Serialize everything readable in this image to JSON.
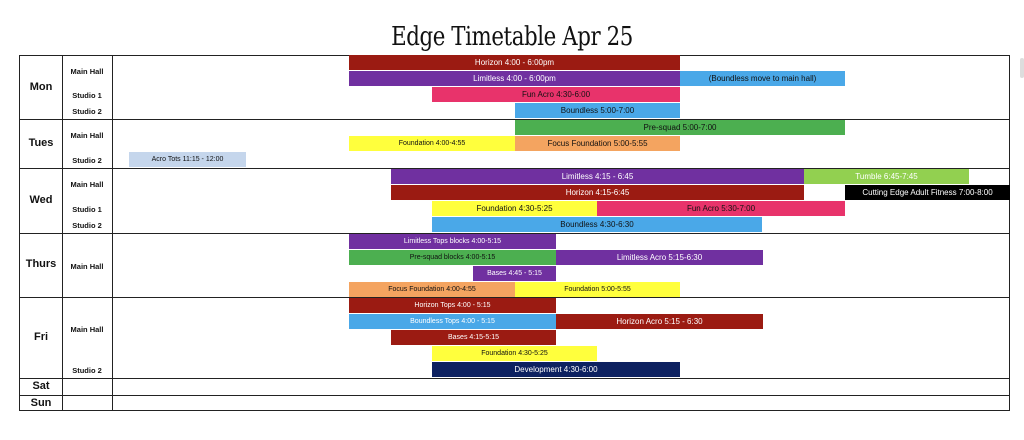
{
  "title": "Edge Timetable Apr 25",
  "days": {
    "mon": "Mon",
    "tues": "Tues",
    "wed": "Wed",
    "thurs": "Thurs",
    "fri": "Fri",
    "sat": "Sat",
    "sun": "Sun"
  },
  "rooms": {
    "main_hall": "Main Hall",
    "studio_1": "Studio 1",
    "studio_2": "Studio 2"
  },
  "classes": {
    "mon_horizon": "Horizon 4:00 - 6:00pm",
    "mon_limitless": "Limitless 4:00 - 6:00pm",
    "mon_boundless_move": "(Boundless move to main hall)",
    "mon_fun_acro": "Fun Acro 4:30-6:00",
    "mon_boundless": "Boundless 5:00-7:00",
    "tue_presquad": "Pre-squad 5:00-7:00",
    "tue_foundation": "Foundation 4:00-4:55",
    "tue_focus_foundation": "Focus Foundation 5:00-5:55",
    "tue_acro_tots": "Acro Tots 11:15 - 12:00",
    "wed_limitless": "Limitless 4:15 - 6:45",
    "wed_tumble": "Tumble 6:45-7:45",
    "wed_horizon": "Horizon 4:15-6:45",
    "wed_adult_fitness": "Cutting Edge Adult Fitness 7:00-8:00",
    "wed_foundation": "Foundation 4:30-5:25",
    "wed_fun_acro": "Fun Acro 5:30-7:00",
    "wed_boundless": "Boundless 4:30-6:30",
    "thu_limitless_tops": "Limitless Tops blocks 4:00-5:15",
    "thu_presquad_blocks": "Pre-squad blocks 4:00-5:15",
    "thu_limitless_acro": "Limitless Acro 5:15-6:30",
    "thu_bases": "Bases 4:45 - 5:15",
    "thu_focus_foundation": "Focus Foundation 4:00-4:55",
    "thu_foundation": "Foundation 5:00-5:55",
    "fri_horizon_tops": "Horizon Tops 4:00 - 5:15",
    "fri_boundless_tops": "Boundless Tops 4:00 - 5:15",
    "fri_horizon_acro": "Horizon Acro 5:15 - 6:30",
    "fri_bases": "Bases 4:15-5:15",
    "fri_foundation": "Foundation 4:30-5:25",
    "fri_development": "Development 4:30-6:00"
  },
  "colors": {
    "dark_red": "#9b1b12",
    "purple": "#7030a0",
    "light_blue": "#4aa8e8",
    "pink": "#e8336b",
    "green": "#4caf50",
    "yellow": "#ffff3d",
    "orange": "#f4a460",
    "pale_blue": "#c5d6ec",
    "light_green": "#92d050",
    "black": "#000000",
    "navy": "#0d2160"
  }
}
